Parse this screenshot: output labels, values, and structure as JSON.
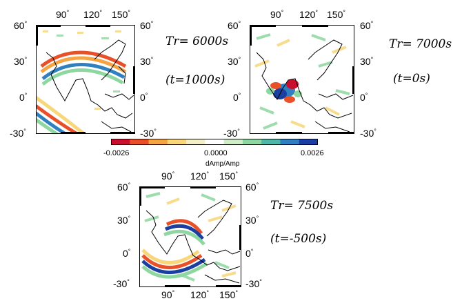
{
  "panels": [
    {
      "id": "p1",
      "title": "Tr= 6000s",
      "time": "(t=1000s)"
    },
    {
      "id": "p2",
      "title": "Tr= 7000s",
      "time": "(t=0s)"
    },
    {
      "id": "p3",
      "title": "Tr= 7500s",
      "time": "(t=-500s)"
    }
  ],
  "axes": {
    "lon_ticks": [
      "90",
      "120",
      "150"
    ],
    "lat_ticks": [
      "60",
      "30",
      "0",
      "-30"
    ],
    "degree_symbol": "°"
  },
  "colorbar": {
    "min_label": "-0.0026",
    "mid_label": "0.0000",
    "max_label": "0.0026",
    "title": "dAmp/Amp",
    "colors": [
      "#c8102e",
      "#e8502a",
      "#f4a442",
      "#f7d77a",
      "#f3f0c8",
      "#ffffff",
      "#cfeec8",
      "#8ed7a0",
      "#4fb7a8",
      "#2f7fc1",
      "#1a3fa0"
    ]
  },
  "map": {
    "lon_range": [
      60,
      160
    ],
    "lat_range": [
      -35,
      65
    ]
  }
}
